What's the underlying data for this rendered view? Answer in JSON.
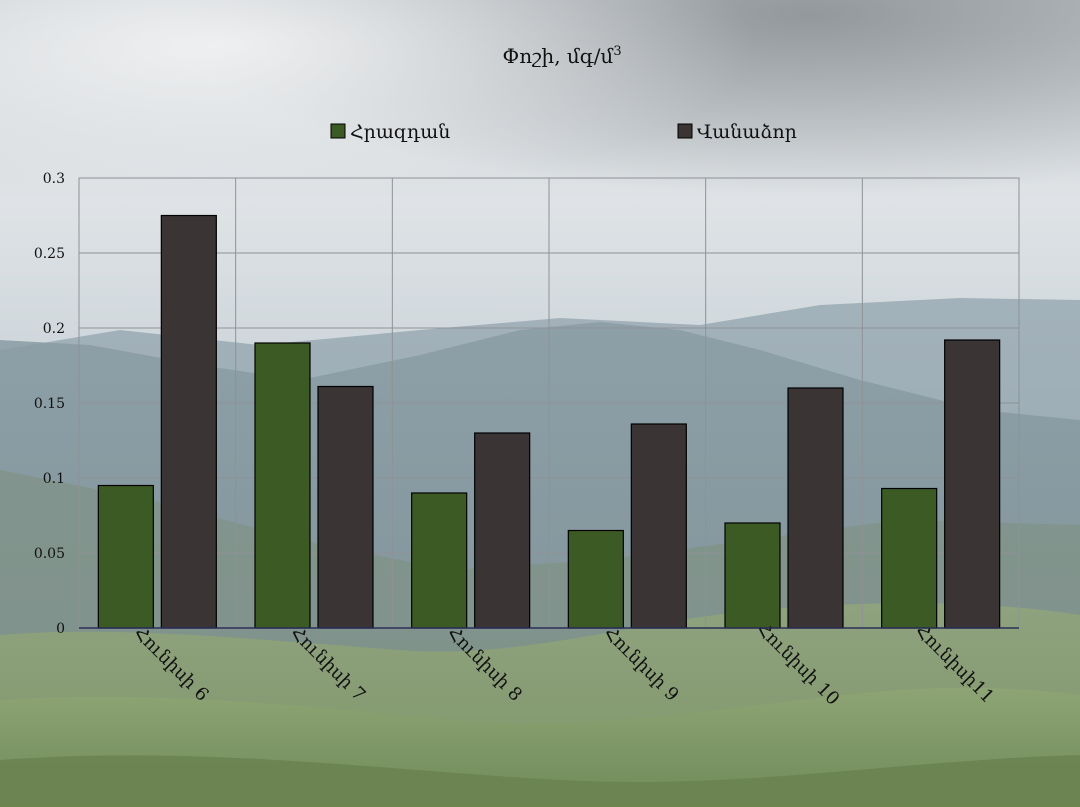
{
  "chart_data": {
    "type": "bar",
    "title": "Փոշի, մգ/մ",
    "title_superscript": "3",
    "categories": [
      "Հունիսի 6",
      "Հունիսի 7",
      "Հունիսի 8",
      "Հունիսի 9",
      "Հունիսի 10",
      "Հունիսի11"
    ],
    "series": [
      {
        "name": "Հրազդան",
        "values": [
          0.095,
          0.19,
          0.09,
          0.065,
          0.07,
          0.093
        ],
        "color": "#3b5a24"
      },
      {
        "name": "Վանաձոր",
        "values": [
          0.275,
          0.161,
          0.13,
          0.136,
          0.16,
          0.192
        ],
        "color": "#3a3435"
      }
    ],
    "yticks": [
      "0",
      "0.05",
      "0.1",
      "0.15",
      "0.2",
      "0.25",
      "0.3"
    ],
    "ylim": [
      0,
      0.3
    ],
    "grid": true,
    "legend_position": "top",
    "background": "mountain landscape photo"
  }
}
